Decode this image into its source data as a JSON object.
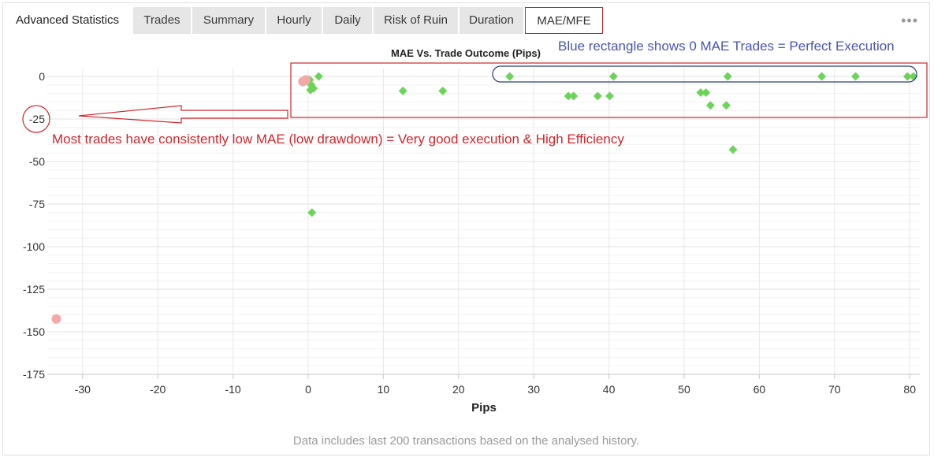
{
  "tabs": [
    {
      "label": "Advanced Statistics"
    },
    {
      "label": "Trades"
    },
    {
      "label": "Summary"
    },
    {
      "label": "Hourly"
    },
    {
      "label": "Daily"
    },
    {
      "label": "Risk of Ruin"
    },
    {
      "label": "Duration"
    },
    {
      "label": "MAE/MFE"
    }
  ],
  "more_icon": "ellipsis-icon",
  "footnote": "Data includes last 200 transactions based on the analysed history.",
  "annotations": {
    "blue_note": "Blue rectangle shows 0 MAE Trades = Perfect Execution",
    "red_note": "Most trades have consistently low MAE (low drawdown) = Very good execution & High Efficiency"
  },
  "colors": {
    "win": "#6dd45a",
    "loss": "#f4a9a9",
    "red_note": "#d0262b",
    "blue_note": "#4a55b5",
    "blue_box": "#2a3a7a"
  },
  "chart_data": {
    "type": "scatter",
    "title": "MAE Vs. Trade Outcome (Pips)",
    "xlabel": "Pips",
    "ylabel": "",
    "xlim": [
      -35,
      82
    ],
    "ylim": [
      -175,
      0
    ],
    "xticks": [
      -30,
      -20,
      -10,
      0,
      10,
      20,
      30,
      40,
      50,
      60,
      70,
      80
    ],
    "yticks": [
      0,
      -25,
      -50,
      -75,
      -100,
      -125,
      -150,
      -175
    ],
    "grid": true,
    "legend": "none",
    "series": [
      {
        "marker": "diamond",
        "color": "#6dd45a",
        "points": [
          [
            1.4,
            0
          ],
          [
            0.2,
            -2
          ],
          [
            0.4,
            -5
          ],
          [
            0.3,
            -8
          ],
          [
            0.7,
            -7
          ],
          [
            12.6,
            -8.5
          ],
          [
            17.9,
            -8.5
          ],
          [
            26.8,
            0
          ],
          [
            40.6,
            0
          ],
          [
            55.8,
            0
          ],
          [
            68.3,
            0
          ],
          [
            72.8,
            0
          ],
          [
            79.7,
            0
          ],
          [
            80.5,
            0
          ],
          [
            34.6,
            -11.5
          ],
          [
            35.3,
            -11.5
          ],
          [
            38.5,
            -11.5
          ],
          [
            40.1,
            -11.5
          ],
          [
            52.2,
            -9.5
          ],
          [
            52.9,
            -9.5
          ],
          [
            53.5,
            -17
          ],
          [
            55.6,
            -17
          ],
          [
            56.5,
            -43
          ],
          [
            0.5,
            -80
          ]
        ]
      },
      {
        "marker": "circle",
        "color": "#f4a9a9",
        "points": [
          [
            -0.7,
            -3
          ],
          [
            -0.3,
            -2
          ],
          [
            -33.5,
            -142.5
          ]
        ]
      }
    ]
  }
}
